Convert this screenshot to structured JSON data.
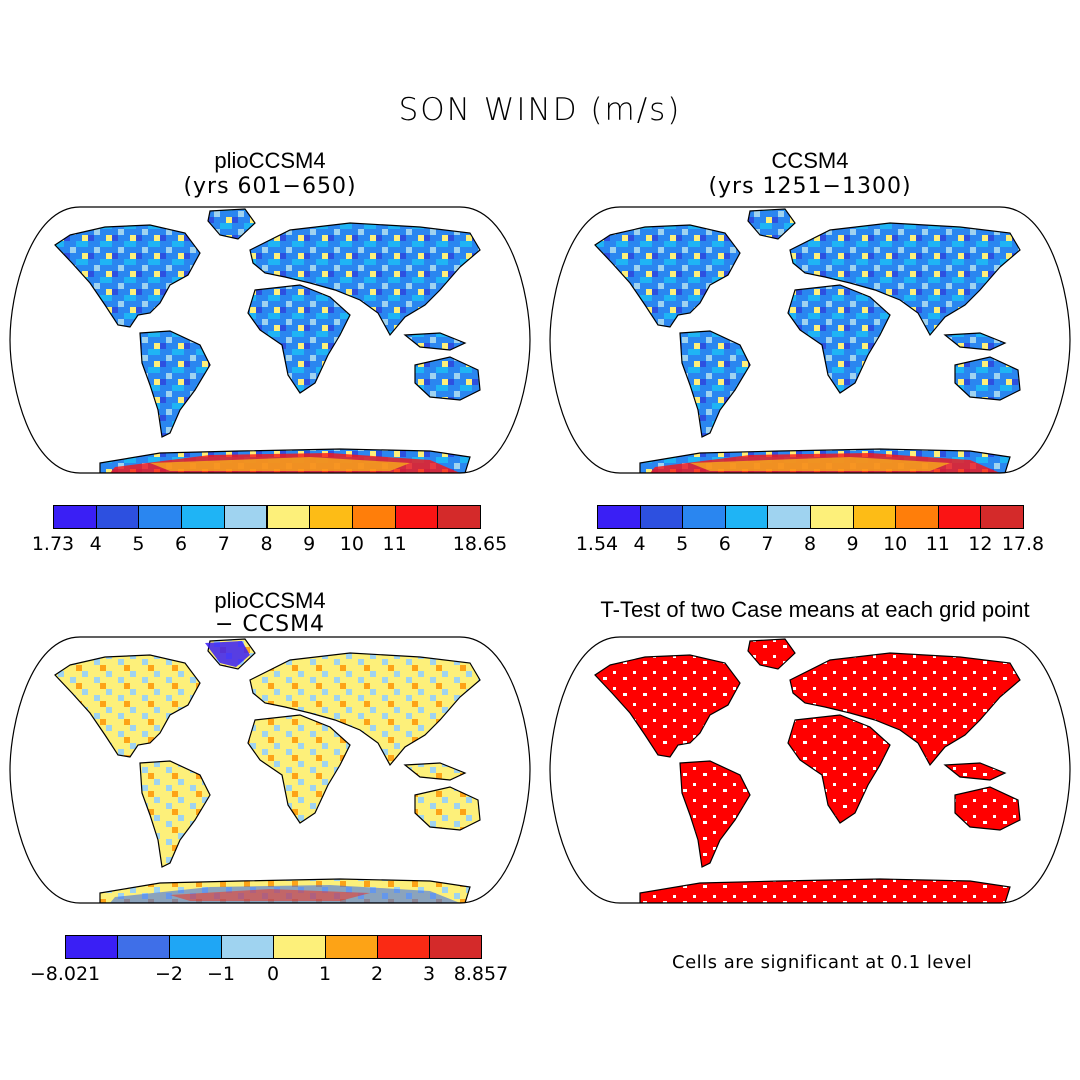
{
  "figure": {
    "title": "SON WIND (m/s)"
  },
  "panels": [
    {
      "id": "plio",
      "title": "plioCCSM4",
      "subtitle": "(yrs 601−650)",
      "type": "mean",
      "land_value_range": [
        1.73,
        18.65
      ]
    },
    {
      "id": "ccsm",
      "title": "CCSM4",
      "subtitle": "(yrs 1251−1300)",
      "type": "mean",
      "land_value_range": [
        1.54,
        17.8
      ]
    },
    {
      "id": "diff",
      "title": "plioCCSM4",
      "subtitle": "− CCSM4",
      "type": "difference",
      "land_value_range": [
        -8.021,
        8.857
      ]
    },
    {
      "id": "ttest",
      "title": "T-Test of two Case means at each grid point",
      "subtitle": "",
      "type": "significance",
      "significant_color": "#ff0000"
    }
  ],
  "colorbars": [
    {
      "id": "plio",
      "colors": [
        "#3a1ff5",
        "#2d50e0",
        "#2a86f0",
        "#1fb4f5",
        "#9fd3f0",
        "#fdf07a",
        "#fdbc16",
        "#ff7e0a",
        "#fa1414",
        "#d42a2a"
      ],
      "labels": [
        "1.73",
        "4",
        "5",
        "6",
        "7",
        "8",
        "9",
        "10",
        "11",
        "",
        "18.65"
      ]
    },
    {
      "id": "ccsm",
      "colors": [
        "#3a1ff5",
        "#2d50e0",
        "#2a86f0",
        "#1fb4f5",
        "#9fd3f0",
        "#fdf07a",
        "#fdbc16",
        "#ff7e0a",
        "#fa1414",
        "#d42a2a"
      ],
      "labels": [
        "1.54",
        "4",
        "5",
        "6",
        "7",
        "8",
        "9",
        "10",
        "11",
        "12",
        "17.8"
      ]
    },
    {
      "id": "diff",
      "colors": [
        "#3a1ff5",
        "#3f6fe8",
        "#1fa6f5",
        "#9fd3f0",
        "#fdf07a",
        "#fda316",
        "#fa2a14",
        "#d42a2a"
      ],
      "labels": [
        "−8.021",
        "",
        "−2",
        "−1",
        "0",
        "1",
        "2",
        "3",
        "8.857"
      ]
    }
  ],
  "note": "Cells are significant at 0.1 level"
}
